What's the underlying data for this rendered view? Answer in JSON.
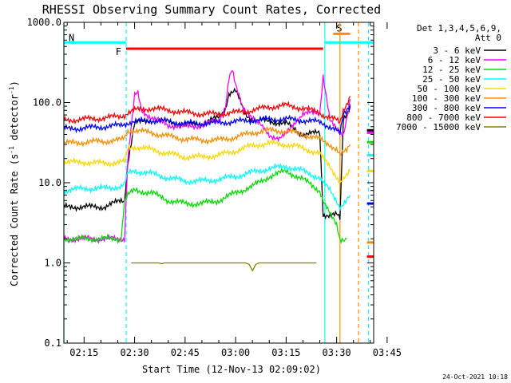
{
  "chart_data": {
    "type": "line",
    "title": "RHESSI Observing Summary Count Rates, Corrected",
    "xlabel": "Start Time (12-Nov-13 02:09:02)",
    "ylabel_main": "Corrected Count Rate (s",
    "ylabel_sup1": "-1",
    "ylabel_mid": " detector",
    "ylabel_sup2": "-1",
    "ylabel_end": ")",
    "yscale": "log",
    "ylim": [
      0.1,
      1000
    ],
    "xlim_minutes": [
      9,
      101
    ],
    "y_ticks": [
      {
        "value": 1000,
        "label": "1000.0"
      },
      {
        "value": 100,
        "label": "100.0"
      },
      {
        "value": 10,
        "label": "10.0"
      },
      {
        "value": 1,
        "label": "1.0"
      },
      {
        "value": 0.1,
        "label": "0.1"
      }
    ],
    "x_ticks": [
      {
        "minute": 15,
        "label": "02:15"
      },
      {
        "minute": 30,
        "label": "02:30"
      },
      {
        "minute": 45,
        "label": "02:45"
      },
      {
        "minute": 60,
        "label": "03:00"
      },
      {
        "minute": 75,
        "label": "03:15"
      },
      {
        "minute": 90,
        "label": "03:30"
      },
      {
        "minute": 105,
        "label": "03:45"
      }
    ],
    "legend_header": [
      "Det 1,3,4,5,6,9,",
      "Att 0"
    ],
    "legend_position": "right",
    "series": [
      {
        "name": "3 - 6 keV",
        "color": "#000000",
        "points": [
          [
            9,
            5
          ],
          [
            15,
            5
          ],
          [
            21,
            5
          ],
          [
            26,
            6
          ],
          [
            27,
            6
          ],
          [
            28,
            18
          ],
          [
            30,
            55
          ],
          [
            35,
            60
          ],
          [
            40,
            58
          ],
          [
            45,
            52
          ],
          [
            50,
            55
          ],
          [
            55,
            65
          ],
          [
            57,
            85
          ],
          [
            58,
            130
          ],
          [
            60,
            140
          ],
          [
            63,
            70
          ],
          [
            66,
            60
          ],
          [
            70,
            58
          ],
          [
            75,
            55
          ],
          [
            78,
            45
          ],
          [
            80,
            40
          ],
          [
            85,
            42
          ],
          [
            86,
            4
          ],
          [
            90,
            4
          ],
          [
            91,
            3.5
          ],
          [
            92,
            60
          ],
          [
            94,
            90
          ]
        ]
      },
      {
        "name": "6 - 12 keV",
        "color": "#ff00ff",
        "points": [
          [
            9,
            2
          ],
          [
            15,
            2
          ],
          [
            21,
            2
          ],
          [
            26,
            2
          ],
          [
            27,
            2
          ],
          [
            28,
            20
          ],
          [
            30,
            120
          ],
          [
            31,
            130
          ],
          [
            32,
            80
          ],
          [
            35,
            65
          ],
          [
            40,
            52
          ],
          [
            45,
            50
          ],
          [
            50,
            52
          ],
          [
            55,
            60
          ],
          [
            57,
            90
          ],
          [
            58,
            200
          ],
          [
            59,
            250
          ],
          [
            60,
            160
          ],
          [
            62,
            90
          ],
          [
            65,
            65
          ],
          [
            70,
            40
          ],
          [
            73,
            35
          ],
          [
            75,
            40
          ],
          [
            78,
            60
          ],
          [
            80,
            72
          ],
          [
            85,
            75
          ],
          [
            86,
            220
          ],
          [
            88,
            60
          ],
          [
            90,
            45
          ],
          [
            92,
            40
          ],
          [
            94,
            110
          ]
        ]
      },
      {
        "name": "12 - 25 keV",
        "color": "#00e000",
        "points": [
          [
            9,
            2
          ],
          [
            15,
            2
          ],
          [
            21,
            2
          ],
          [
            26,
            2
          ],
          [
            27,
            6
          ],
          [
            28,
            7
          ],
          [
            30,
            8
          ],
          [
            35,
            7.5
          ],
          [
            40,
            6
          ],
          [
            45,
            5.5
          ],
          [
            50,
            5.5
          ],
          [
            55,
            6
          ],
          [
            60,
            7.5
          ],
          [
            65,
            9
          ],
          [
            70,
            12
          ],
          [
            75,
            14
          ],
          [
            80,
            11
          ],
          [
            85,
            8
          ],
          [
            86,
            6
          ],
          [
            88,
            4
          ],
          [
            90,
            3
          ],
          [
            91,
            2
          ],
          [
            93,
            2
          ]
        ]
      },
      {
        "name": "25 - 50 keV",
        "color": "#00ffff",
        "points": [
          [
            9,
            8
          ],
          [
            15,
            8.5
          ],
          [
            21,
            8.5
          ],
          [
            26,
            9
          ],
          [
            27,
            9.5
          ],
          [
            28,
            13
          ],
          [
            30,
            14
          ],
          [
            35,
            13
          ],
          [
            40,
            11.5
          ],
          [
            45,
            10.5
          ],
          [
            50,
            10.5
          ],
          [
            55,
            11
          ],
          [
            60,
            12
          ],
          [
            65,
            13.5
          ],
          [
            70,
            15
          ],
          [
            75,
            16
          ],
          [
            80,
            14
          ],
          [
            85,
            11.5
          ],
          [
            86,
            10
          ],
          [
            88,
            8
          ],
          [
            90,
            6
          ],
          [
            91,
            5
          ],
          [
            93,
            6
          ],
          [
            94,
            7
          ]
        ]
      },
      {
        "name": "50 - 100 keV",
        "color": "#ffd700",
        "points": [
          [
            9,
            18
          ],
          [
            15,
            18
          ],
          [
            21,
            17.5
          ],
          [
            26,
            18
          ],
          [
            27,
            18
          ],
          [
            28,
            27
          ],
          [
            30,
            28
          ],
          [
            35,
            26
          ],
          [
            40,
            23
          ],
          [
            45,
            21
          ],
          [
            50,
            21
          ],
          [
            55,
            22
          ],
          [
            60,
            25
          ],
          [
            65,
            29
          ],
          [
            70,
            31
          ],
          [
            75,
            30
          ],
          [
            80,
            27
          ],
          [
            85,
            23
          ],
          [
            86,
            20
          ],
          [
            88,
            16
          ],
          [
            90,
            12
          ],
          [
            91,
            10
          ],
          [
            93,
            12
          ],
          [
            94,
            14
          ]
        ]
      },
      {
        "name": "100 - 300 keV",
        "color": "#ff8c00",
        "points": [
          [
            9,
            31
          ],
          [
            15,
            32
          ],
          [
            21,
            33
          ],
          [
            26,
            34
          ],
          [
            27,
            36
          ],
          [
            28,
            44
          ],
          [
            30,
            45
          ],
          [
            35,
            42
          ],
          [
            40,
            38
          ],
          [
            45,
            35
          ],
          [
            50,
            34
          ],
          [
            55,
            34
          ],
          [
            60,
            37
          ],
          [
            65,
            42
          ],
          [
            70,
            45
          ],
          [
            75,
            44
          ],
          [
            80,
            40
          ],
          [
            85,
            35
          ],
          [
            86,
            33
          ],
          [
            88,
            30
          ],
          [
            90,
            26
          ],
          [
            91,
            22
          ],
          [
            93,
            25
          ],
          [
            94,
            30
          ]
        ]
      },
      {
        "name": "300 - 800 keV",
        "color": "#0000ff",
        "points": [
          [
            9,
            47
          ],
          [
            15,
            48
          ],
          [
            21,
            50
          ],
          [
            26,
            52
          ],
          [
            27,
            54
          ],
          [
            28,
            56
          ],
          [
            30,
            58
          ],
          [
            35,
            60
          ],
          [
            40,
            58
          ],
          [
            45,
            55
          ],
          [
            50,
            55
          ],
          [
            55,
            56
          ],
          [
            60,
            58
          ],
          [
            65,
            60
          ],
          [
            70,
            62
          ],
          [
            75,
            62
          ],
          [
            80,
            60
          ],
          [
            85,
            57
          ],
          [
            86,
            55
          ],
          [
            88,
            50
          ],
          [
            90,
            45
          ],
          [
            91,
            40
          ],
          [
            92,
            70
          ],
          [
            94,
            95
          ]
        ]
      },
      {
        "name": "800 - 7000 keV",
        "color": "#ff0000",
        "points": [
          [
            9,
            60
          ],
          [
            15,
            62
          ],
          [
            21,
            64
          ],
          [
            26,
            68
          ],
          [
            27,
            70
          ],
          [
            28,
            75
          ],
          [
            30,
            80
          ],
          [
            35,
            85
          ],
          [
            40,
            80
          ],
          [
            45,
            75
          ],
          [
            50,
            72
          ],
          [
            55,
            72
          ],
          [
            60,
            75
          ],
          [
            65,
            80
          ],
          [
            70,
            88
          ],
          [
            75,
            92
          ],
          [
            80,
            85
          ],
          [
            85,
            75
          ],
          [
            86,
            70
          ],
          [
            88,
            65
          ],
          [
            90,
            60
          ],
          [
            91,
            55
          ],
          [
            92,
            80
          ],
          [
            94,
            120
          ]
        ]
      },
      {
        "name": "7000 - 15000 keV",
        "color": "#808000",
        "points": [
          [
            29,
            1
          ],
          [
            37,
            1
          ],
          [
            38,
            0.98
          ],
          [
            39,
            1
          ],
          [
            47,
            1
          ],
          [
            48,
            1
          ],
          [
            53,
            1
          ],
          [
            54,
            1
          ],
          [
            63,
            1
          ],
          [
            64,
            0.96
          ],
          [
            65,
            0.8
          ],
          [
            66,
            0.96
          ],
          [
            67,
            1
          ],
          [
            84,
            1
          ]
        ]
      }
    ],
    "right_segment": {
      "x_range": [
        99,
        101
      ],
      "values": [
        45,
        42,
        32,
        22,
        14,
        1.8,
        5.5,
        1.2,
        null
      ]
    },
    "annotations": [
      {
        "type": "bar",
        "label": "N",
        "color": "#00ffff",
        "x_start": 9,
        "x_end": 27.5,
        "y": 560
      },
      {
        "type": "bar",
        "label": "",
        "color": "#00ffff",
        "x_start": 86.5,
        "x_end": 101,
        "y": 560
      },
      {
        "type": "bar",
        "label": "F",
        "color": "#ff0000",
        "x_start": 27.5,
        "x_end": 86,
        "y": 470
      },
      {
        "type": "bar",
        "label": "S",
        "color": "#ff8c00",
        "x_start": 89,
        "x_end": 94,
        "y": 720
      },
      {
        "type": "vline",
        "color": "#00ffff",
        "dashed": false,
        "x": 9
      },
      {
        "type": "vline",
        "color": "#00ffff",
        "dashed": true,
        "x": 27.5
      },
      {
        "type": "vline",
        "color": "#00ffff",
        "dashed": false,
        "x": 86.5
      },
      {
        "type": "vline",
        "color": "#ff8c00",
        "dashed": false,
        "x": 91
      },
      {
        "type": "vline",
        "color": "#ff8c00",
        "dashed": true,
        "x": 96.5
      },
      {
        "type": "vline",
        "color": "#00ffff",
        "dashed": true,
        "x": 99.5
      }
    ],
    "grid": false
  },
  "footer": {
    "timestamp": "24-Oct-2021 10:18"
  }
}
